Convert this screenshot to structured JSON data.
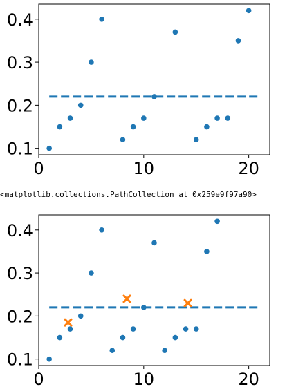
{
  "output_text": "<matplotlib.collections.PathCollection at 0x259e9f97a90>",
  "colors": {
    "points": "#1f77b4",
    "line": "#1f77b4",
    "markers": "#ff7f0e"
  },
  "chart_data": [
    {
      "type": "scatter",
      "xlim": [
        0,
        22
      ],
      "ylim": [
        0.085,
        0.435
      ],
      "xticks": [
        "0",
        "10",
        "20"
      ],
      "yticks": [
        "0.1",
        "0.2",
        "0.3",
        "0.4"
      ],
      "series": [
        {
          "x": [
            1,
            2,
            3,
            4,
            5,
            6,
            8,
            9,
            10,
            11,
            13,
            15,
            16,
            17,
            18,
            19,
            20
          ],
          "y": [
            0.1,
            0.15,
            0.17,
            0.2,
            0.3,
            0.4,
            0.12,
            0.15,
            0.17,
            0.22,
            0.37,
            0.12,
            0.15,
            0.17,
            0.17,
            0.35,
            0.42
          ]
        }
      ],
      "hline": {
        "y": 0.22,
        "x0": 1,
        "x1": 21,
        "style": "dashed"
      }
    },
    {
      "type": "scatter",
      "xlim": [
        0,
        22
      ],
      "ylim": [
        0.085,
        0.435
      ],
      "xticks": [
        "0",
        "10",
        "20"
      ],
      "yticks": [
        "0.1",
        "0.2",
        "0.3",
        "0.4"
      ],
      "series": [
        {
          "x": [
            1,
            2,
            3,
            4,
            5,
            6,
            7,
            8,
            9,
            10,
            11,
            12,
            13,
            14,
            15,
            16,
            17
          ],
          "y": [
            0.1,
            0.15,
            0.17,
            0.2,
            0.3,
            0.4,
            0.12,
            0.15,
            0.17,
            0.22,
            0.37,
            0.12,
            0.15,
            0.17,
            0.17,
            0.35,
            0.42
          ]
        }
      ],
      "markers": {
        "x": [
          2.8,
          8.4,
          14.2
        ],
        "y": [
          0.185,
          0.24,
          0.23
        ],
        "shape": "x"
      },
      "hline": {
        "y": 0.22,
        "x0": 1,
        "x1": 21,
        "style": "dashed"
      }
    }
  ]
}
